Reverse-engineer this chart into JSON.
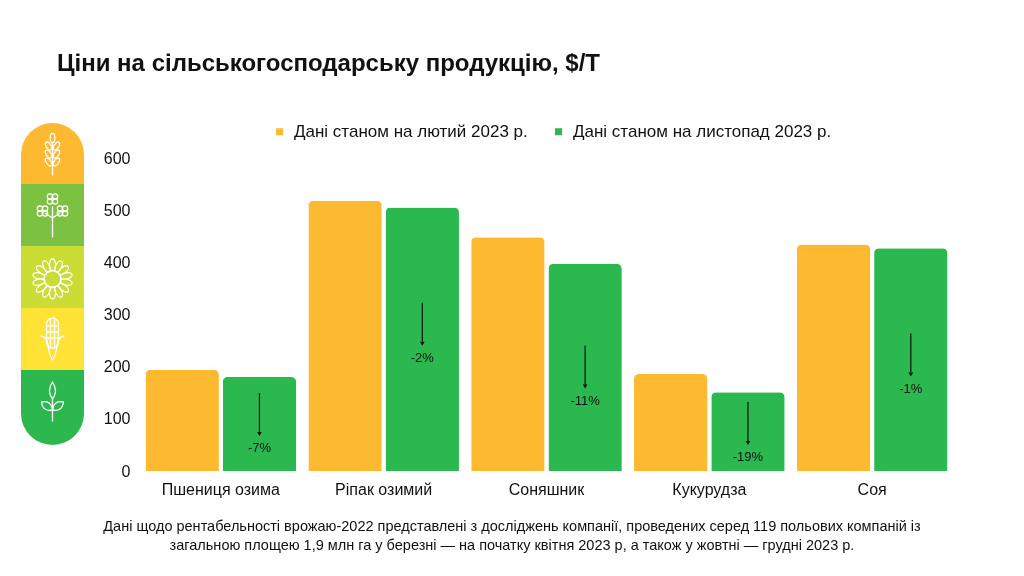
{
  "chart_data": {
    "type": "bar",
    "title": "Ціни на сільськогосподарську продукцію, $/T",
    "categories": [
      "Пшениця озима",
      "Ріпак озимий",
      "Соняшник",
      "Кукурудза",
      "Соя"
    ],
    "series": [
      {
        "name": "Дані станом на лютий 2023 р.",
        "color": "#fdba31",
        "values": [
          194,
          518,
          448,
          186,
          434
        ]
      },
      {
        "name": "Дані станом на листопад 2023 р.",
        "color": "#2bb84f",
        "values": [
          180,
          505,
          397,
          151,
          427
        ]
      }
    ],
    "ylim": [
      0,
      600
    ],
    "yticks": [
      0,
      100,
      200,
      300,
      400,
      500,
      600
    ],
    "legend": "top",
    "annotations": [
      {
        "text": "-7%",
        "x": "Пшениця озима",
        "y": 44
      },
      {
        "text": "-2%",
        "x": "Ріпак озимий",
        "y": 217
      },
      {
        "text": "-11%",
        "x": "Соняшник",
        "y": 135
      },
      {
        "text": "-19%",
        "x": "Кукурудза",
        "y": 27
      },
      {
        "text": "-1%",
        "x": "Соя",
        "y": 158
      },
      "Дані щодо рентабельності врожаю-2022 представлені з досліджень компанії, проведених серед 119 польових компаній із загальною площею 1,9 млн га у березні — на початку квітня 2023 р, а також у жовтні — грудні 2023 р."
    ]
  }
}
